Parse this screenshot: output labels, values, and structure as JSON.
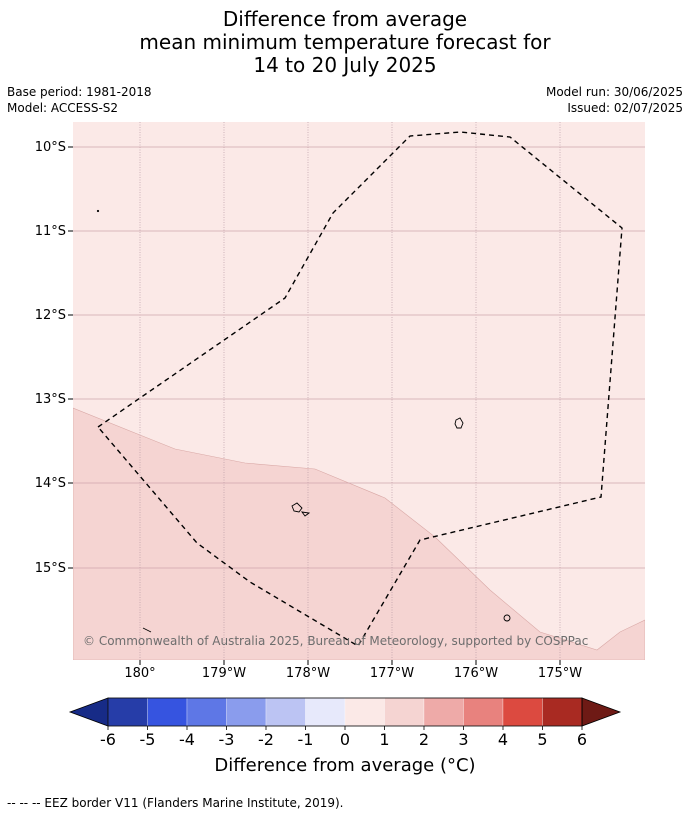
{
  "title": {
    "line1": "Difference from average",
    "line2": "mean minimum temperature forecast for",
    "line3": "14 to 20 July 2025"
  },
  "meta": {
    "base_period": "Base period: 1981-2018",
    "model": "Model: ACCESS-S2",
    "model_run": "Model run: 30/06/2025",
    "issued": "Issued: 02/07/2025"
  },
  "map": {
    "lat_labels": [
      "10°S",
      "11°S",
      "12°S",
      "13°S",
      "14°S",
      "15°S"
    ],
    "lon_labels": [
      "180°",
      "179°W",
      "178°W",
      "177°W",
      "176°W",
      "175°W"
    ],
    "copyright": "© Commonwealth of Australia 2025, Bureau of Meteorology, supported by COSPPac",
    "colors": {
      "anomaly_0_to_1": "#fbe9e7",
      "anomaly_1_to_2": "#f5d4d2"
    }
  },
  "colorbar": {
    "ticks": [
      "-6",
      "-5",
      "-4",
      "-3",
      "-2",
      "-1",
      "0",
      "1",
      "2",
      "3",
      "4",
      "5",
      "6"
    ],
    "colors": [
      "#172b87",
      "#263da8",
      "#3654e0",
      "#5e77e6",
      "#8a9ced",
      "#bcc4f3",
      "#e7e9fb",
      "#fbe9e7",
      "#f5d4d2",
      "#eeaaa8",
      "#e8827e",
      "#dc4a40",
      "#a92a22",
      "#6e1a15"
    ],
    "label": "Difference from average (°C)"
  },
  "source_note": "--  --  -- EEZ border V11 (Flanders Marine Institute, 2019)."
}
